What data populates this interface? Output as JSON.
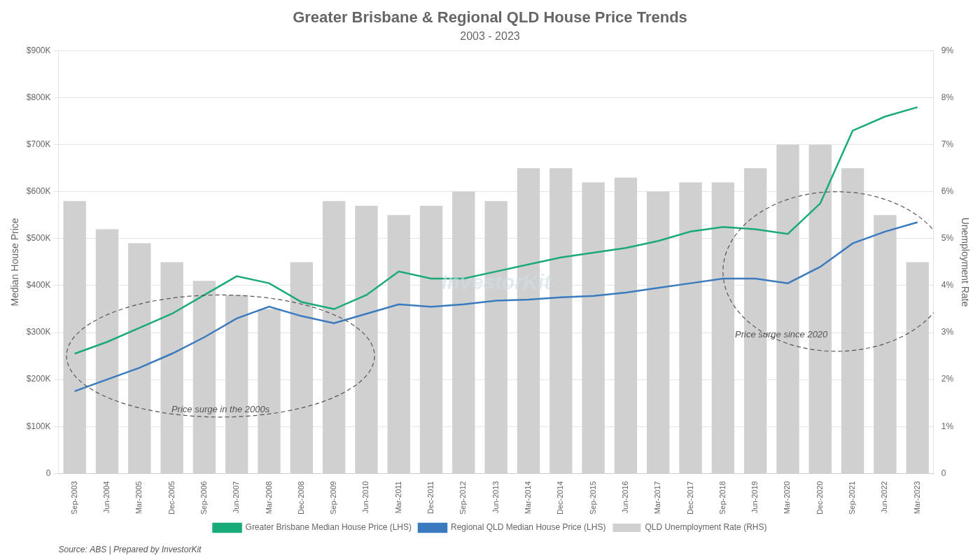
{
  "chart_data": {
    "type": "bar",
    "title": "Greater Brisbane & Regional QLD House Price Trends",
    "subtitle": "2003 - 2023",
    "source": "Source: ABS | Prepared by InvestorKit",
    "watermark": "InvestorKit",
    "annotations": [
      "Price surge in the 2000s",
      "Price surge since 2020"
    ],
    "ylabel": "Median House Price",
    "y2label": "Unemployment Rate",
    "categories": [
      "Sep-2003",
      "Jun-2004",
      "Mar-2005",
      "Dec-2005",
      "Sep-2006",
      "Jun-2007",
      "Mar-2008",
      "Dec-2008",
      "Sep-2009",
      "Jun-2010",
      "Mar-2011",
      "Dec-2011",
      "Sep-2012",
      "Jun-2013",
      "Mar-2014",
      "Dec-2014",
      "Sep-2015",
      "Jun-2016",
      "Mar-2017",
      "Dec-2017",
      "Sep-2018",
      "Jun-2019",
      "Mar-2020",
      "Dec-2020",
      "Sep-2021",
      "Jun-2022",
      "Mar-2023"
    ],
    "series": [
      {
        "name": "Greater Brisbane Median House Price (LHS)",
        "type": "line",
        "color": "#1aaa7a",
        "values": [
          255000,
          280000,
          310000,
          340000,
          380000,
          420000,
          405000,
          365000,
          350000,
          380000,
          430000,
          415000,
          415000,
          430000,
          445000,
          460000,
          470000,
          480000,
          495000,
          515000,
          525000,
          520000,
          510000,
          575000,
          730000,
          760000,
          780000
        ]
      },
      {
        "name": "Regional QLD Median House Price (LHS)",
        "type": "line",
        "color": "#3a7abf",
        "values": [
          175000,
          200000,
          225000,
          255000,
          290000,
          330000,
          355000,
          335000,
          320000,
          340000,
          360000,
          355000,
          360000,
          368000,
          370000,
          375000,
          378000,
          385000,
          395000,
          405000,
          415000,
          415000,
          405000,
          440000,
          490000,
          515000,
          535000
        ]
      },
      {
        "name": "QLD Unemployment Rate (RHS)",
        "type": "bar",
        "axis": "y2",
        "color": "#d0d0d0",
        "values": [
          5.8,
          5.2,
          4.9,
          4.5,
          4.1,
          3.8,
          3.5,
          4.5,
          5.8,
          5.7,
          5.5,
          5.7,
          6.0,
          5.8,
          6.5,
          6.5,
          6.2,
          6.3,
          6.0,
          6.2,
          6.2,
          6.5,
          7.0,
          7.0,
          6.5,
          5.5,
          4.5
        ]
      }
    ],
    "ylim": [
      0,
      900000
    ],
    "yticks": [
      0,
      {
        "value": 100000,
        "label": "$100K"
      },
      {
        "value": 200000,
        "label": "$200K"
      },
      {
        "value": 300000,
        "label": "$300K"
      },
      {
        "value": 400000,
        "label": "$400K"
      },
      {
        "value": 500000,
        "label": "$500K"
      },
      {
        "value": 600000,
        "label": "$600K"
      },
      {
        "value": 700000,
        "label": "$700K"
      },
      {
        "value": 800000,
        "label": "$800K"
      },
      {
        "value": 900000,
        "label": "$900K"
      }
    ],
    "y2lim": [
      0,
      9
    ],
    "y2ticks": [
      0,
      {
        "value": 1,
        "label": "1%"
      },
      {
        "value": 2,
        "label": "2%"
      },
      {
        "value": 3,
        "label": "3%"
      },
      {
        "value": 4,
        "label": "4%"
      },
      {
        "value": 5,
        "label": "5%"
      },
      {
        "value": 6,
        "label": "6%"
      },
      {
        "value": 7,
        "label": "7%"
      },
      {
        "value": 8,
        "label": "8%"
      },
      {
        "value": 9,
        "label": "9%"
      }
    ],
    "grid": true,
    "legend": "bottom"
  }
}
